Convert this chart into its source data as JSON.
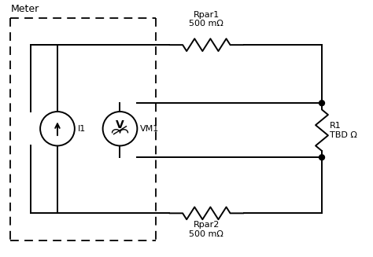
{
  "title": "Meter",
  "bg_color": "#ffffff",
  "line_color": "#000000",
  "Rpar1_label": "Rpar1\n500 mΩ",
  "Rpar2_label": "Rpar2\n500 mΩ",
  "R1_label": "R1\nTBD Ω",
  "fig_w": 4.74,
  "fig_h": 3.27,
  "dpi": 100
}
